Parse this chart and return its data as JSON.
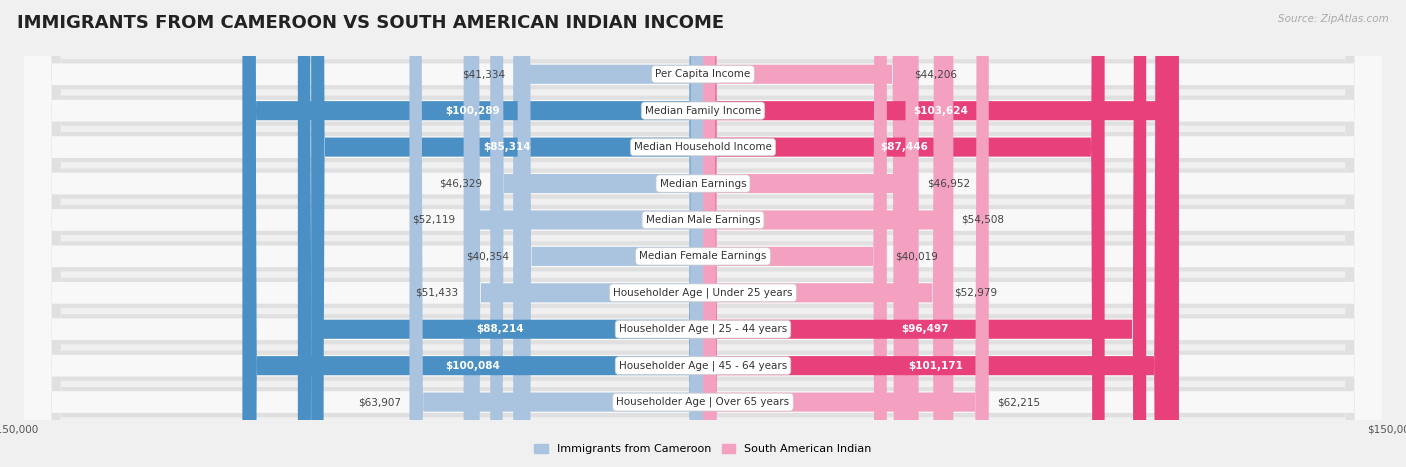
{
  "title": "IMMIGRANTS FROM CAMEROON VS SOUTH AMERICAN INDIAN INCOME",
  "source": "Source: ZipAtlas.com",
  "categories": [
    "Per Capita Income",
    "Median Family Income",
    "Median Household Income",
    "Median Earnings",
    "Median Male Earnings",
    "Median Female Earnings",
    "Householder Age | Under 25 years",
    "Householder Age | 25 - 44 years",
    "Householder Age | 45 - 64 years",
    "Householder Age | Over 65 years"
  ],
  "cameroon_values": [
    41334,
    100289,
    85314,
    46329,
    52119,
    40354,
    51433,
    88214,
    100084,
    63907
  ],
  "south_american_values": [
    44206,
    103624,
    87446,
    46952,
    54508,
    40019,
    52979,
    96497,
    101171,
    62215
  ],
  "cameroon_light_color": "#aac4e0",
  "cameroon_dark_color": "#4a90c4",
  "south_american_light_color": "#f4a0c0",
  "south_american_dark_color": "#e8407a",
  "dark_threshold": 80000,
  "max_value": 150000,
  "background_color": "#f0f0f0",
  "row_outer_color": "#e0e0e0",
  "row_inner_color": "#f8f8f8",
  "title_fontsize": 13,
  "label_fontsize": 7.5,
  "value_fontsize": 7.5,
  "legend_fontsize": 8,
  "source_fontsize": 7.5
}
